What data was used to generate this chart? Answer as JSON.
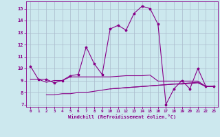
{
  "title": "Windchill (Refroidissement éolien,°C)",
  "bg_color": "#cce8ee",
  "line_color": "#880088",
  "grid_color": "#aabbcc",
  "xlim": [
    -0.5,
    23.5
  ],
  "ylim": [
    6.8,
    15.6
  ],
  "xticks": [
    0,
    1,
    2,
    3,
    4,
    5,
    6,
    7,
    8,
    9,
    10,
    11,
    12,
    13,
    14,
    15,
    16,
    17,
    18,
    19,
    20,
    21,
    22,
    23
  ],
  "yticks": [
    7,
    8,
    9,
    10,
    11,
    12,
    13,
    14,
    15
  ],
  "series1_x": [
    0,
    1,
    2,
    3,
    4,
    5,
    6,
    7,
    8,
    9,
    10,
    11,
    12,
    13,
    14,
    15,
    16,
    17,
    18,
    19,
    20,
    21,
    22,
    23
  ],
  "series1_y": [
    10.2,
    9.1,
    9.1,
    8.8,
    9.0,
    9.4,
    9.5,
    11.8,
    10.4,
    9.5,
    13.3,
    13.6,
    13.2,
    14.6,
    15.2,
    15.0,
    13.7,
    7.0,
    8.3,
    9.0,
    8.3,
    10.0,
    8.5,
    8.5
  ],
  "series2_x": [
    2,
    3,
    4,
    5,
    6,
    7,
    8,
    9,
    10,
    11,
    12,
    13,
    14,
    15,
    16,
    17,
    18,
    19,
    20,
    21,
    22,
    23
  ],
  "series2_y": [
    7.8,
    7.8,
    7.9,
    7.9,
    8.0,
    8.0,
    8.1,
    8.2,
    8.3,
    8.35,
    8.4,
    8.45,
    8.5,
    8.55,
    8.6,
    8.65,
    8.7,
    8.7,
    8.75,
    8.8,
    8.5,
    8.5
  ],
  "series3_x": [
    0,
    1,
    2,
    3,
    4,
    5,
    6,
    7,
    8,
    9,
    10,
    11,
    12,
    13,
    14,
    15,
    16,
    17,
    18,
    19,
    20,
    21,
    22,
    23
  ],
  "series3_y": [
    9.1,
    9.1,
    8.85,
    9.0,
    9.0,
    9.3,
    9.3,
    9.3,
    9.3,
    9.3,
    9.3,
    9.35,
    9.4,
    9.4,
    9.4,
    9.45,
    8.95,
    8.95,
    8.95,
    8.95,
    8.95,
    8.95,
    8.5,
    8.5
  ],
  "series4_x": [
    10,
    11,
    12,
    13,
    14,
    15,
    16,
    17,
    18,
    19,
    20,
    21,
    22,
    23
  ],
  "series4_y": [
    8.3,
    8.35,
    8.4,
    8.45,
    8.5,
    8.55,
    8.6,
    8.65,
    8.7,
    8.75,
    8.8,
    8.85,
    8.5,
    8.5
  ]
}
